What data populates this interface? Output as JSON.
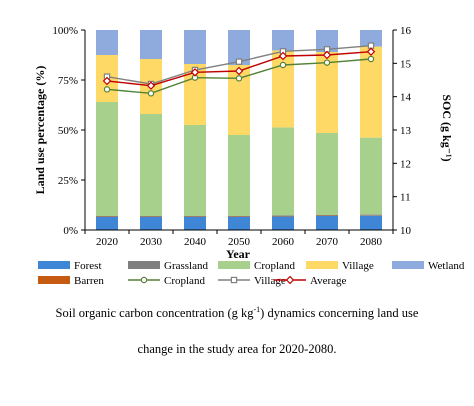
{
  "chart_data": {
    "type": "bar",
    "stacked": true,
    "xlabel": "Year",
    "ylabel": "Land use percentage (%)",
    "y2label": "SOC (g kg⁻¹)",
    "categories": [
      "2020",
      "2030",
      "2040",
      "2050",
      "2060",
      "2070",
      "2080"
    ],
    "ylim": [
      0,
      100
    ],
    "yticks": [
      "0%",
      "25%",
      "50%",
      "75%",
      "100%"
    ],
    "y2lim": [
      10,
      16
    ],
    "y2ticks": [
      "10",
      "11",
      "12",
      "13",
      "14",
      "15",
      "16"
    ],
    "grid": false,
    "legend_placement": "bottom",
    "bar_series": [
      {
        "name": "Forest",
        "color": "#3f86d6",
        "values": [
          6.5,
          6.5,
          6.5,
          6.5,
          6.8,
          7.0,
          7.2
        ]
      },
      {
        "name": "Barren",
        "color": "#c55a11",
        "values": [
          0.2,
          0.2,
          0.2,
          0.2,
          0.2,
          0.2,
          0.2
        ]
      },
      {
        "name": "Grassland",
        "color": "#7f7f7f",
        "values": [
          0.3,
          0.3,
          0.3,
          0.3,
          0.3,
          0.3,
          0.3
        ]
      },
      {
        "name": "Cropland",
        "color": "#a8d08d",
        "values": [
          57,
          51,
          45.5,
          40.5,
          44,
          41,
          38.5
        ]
      },
      {
        "name": "Village",
        "color": "#ffd966",
        "values": [
          23.5,
          27.5,
          30.5,
          35,
          38.5,
          40.5,
          45.5
        ]
      },
      {
        "name": "Wetland",
        "color": "#8faadc",
        "values": [
          12.5,
          14.5,
          17,
          17.5,
          10.2,
          11,
          8.3
        ]
      }
    ],
    "line_series": [
      {
        "name": "Cropland",
        "color": "#548235",
        "marker": "circle",
        "values": [
          14.22,
          14.1,
          14.57,
          14.55,
          14.95,
          15.02,
          15.13
        ]
      },
      {
        "name": "Village",
        "color": "#808080",
        "marker": "square",
        "values": [
          14.6,
          14.38,
          14.8,
          15.05,
          15.36,
          15.42,
          15.53
        ]
      },
      {
        "name": "Average",
        "color": "#c00000",
        "marker": "diamond",
        "values": [
          14.47,
          14.33,
          14.73,
          14.77,
          15.22,
          15.25,
          15.35
        ]
      }
    ]
  },
  "legend": {
    "row1": [
      "Forest",
      "Grassland",
      "Cropland",
      "Village",
      "Wetland"
    ],
    "row2": [
      "Barren",
      "Cropland",
      "Village",
      "Average"
    ]
  },
  "caption": {
    "line1_pre": "Soil organic carbon concentration (g kg",
    "line1_sup": "-1",
    "line1_post": ") dynamics concerning land use",
    "line2": "change in the study area for 2020-2080."
  }
}
